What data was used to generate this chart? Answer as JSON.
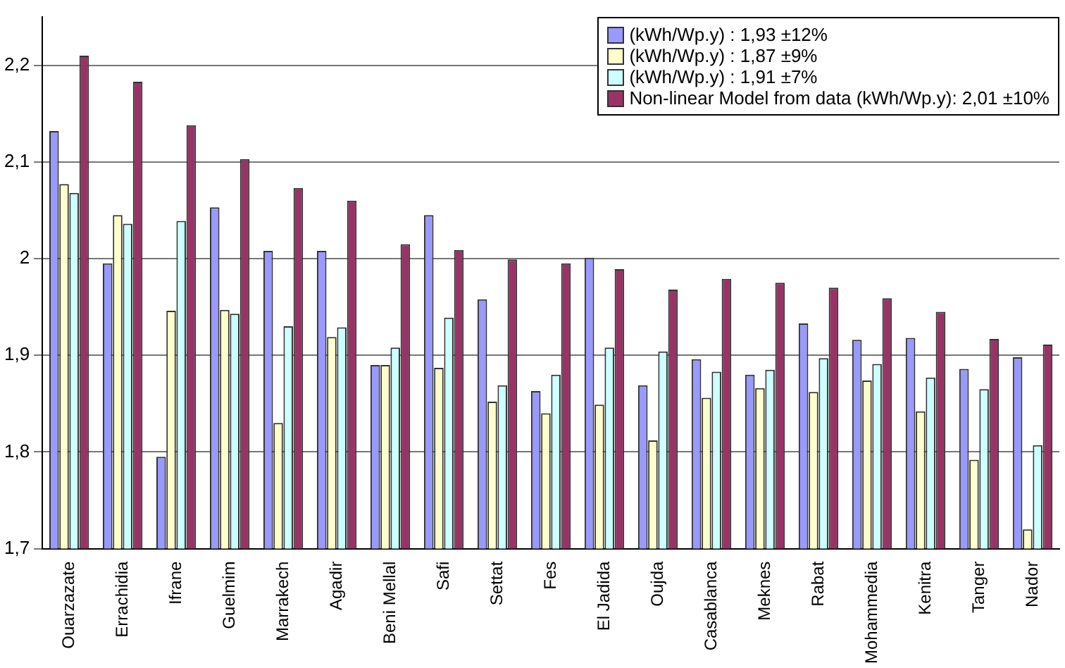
{
  "chart_data": {
    "type": "bar",
    "categories": [
      "Ouarzazate",
      "Errachidia",
      "Ifrane",
      "Guelmim",
      "Marrakech",
      "Agadir",
      "Beni Mellal",
      "Safi",
      "Settat",
      "Fes",
      "El Jadida",
      "Oujda",
      "Casablanca",
      "Meknes",
      "Rabat",
      "Mohammedia",
      "Kenitra",
      "Tanger",
      "Nador"
    ],
    "series": [
      {
        "name": "(kWh/Wp.y) : 1,93 ±12%",
        "color": "#9999ff",
        "values": [
          2.132,
          1.995,
          1.795,
          2.053,
          2.008,
          2.008,
          1.89,
          2.045,
          1.958,
          1.863,
          2.001,
          1.869,
          1.896,
          1.88,
          1.933,
          1.916,
          1.918,
          1.886,
          1.898
        ]
      },
      {
        "name": "(kWh/Wp.y) : 1,87 ±9%",
        "color": "#ffffcc",
        "values": [
          2.077,
          2.045,
          1.946,
          1.947,
          1.83,
          1.919,
          1.89,
          1.887,
          1.852,
          1.84,
          1.849,
          1.812,
          1.856,
          1.866,
          1.862,
          1.874,
          1.842,
          1.792,
          1.72
        ]
      },
      {
        "name": "(kWh/Wp.y) : 1,91 ±7%",
        "color": "#ccffff",
        "values": [
          2.068,
          2.036,
          2.039,
          1.943,
          1.93,
          1.929,
          1.908,
          1.939,
          1.869,
          1.88,
          1.908,
          1.904,
          1.883,
          1.885,
          1.897,
          1.891,
          1.877,
          1.865,
          1.807
        ]
      },
      {
        "name": "Non-linear Model from data (kWh/Wp.y): 2,01 ±10%",
        "color": "#993366",
        "values": [
          2.21,
          2.183,
          2.138,
          2.103,
          2.073,
          2.06,
          2.015,
          2.009,
          1.999,
          1.995,
          1.989,
          1.968,
          1.979,
          1.975,
          1.97,
          1.959,
          1.945,
          1.917,
          1.911
        ]
      }
    ],
    "ylim": [
      1.7,
      2.25
    ],
    "yticks": [
      {
        "value": 1.7,
        "label": "1,7"
      },
      {
        "value": 1.8,
        "label": "1,8"
      },
      {
        "value": 1.9,
        "label": "1,9"
      },
      {
        "value": 2,
        "label": "2"
      },
      {
        "value": 2.1,
        "label": "2,1"
      },
      {
        "value": 2.2,
        "label": "2,2"
      }
    ],
    "grid": "y",
    "legend": "top right"
  }
}
